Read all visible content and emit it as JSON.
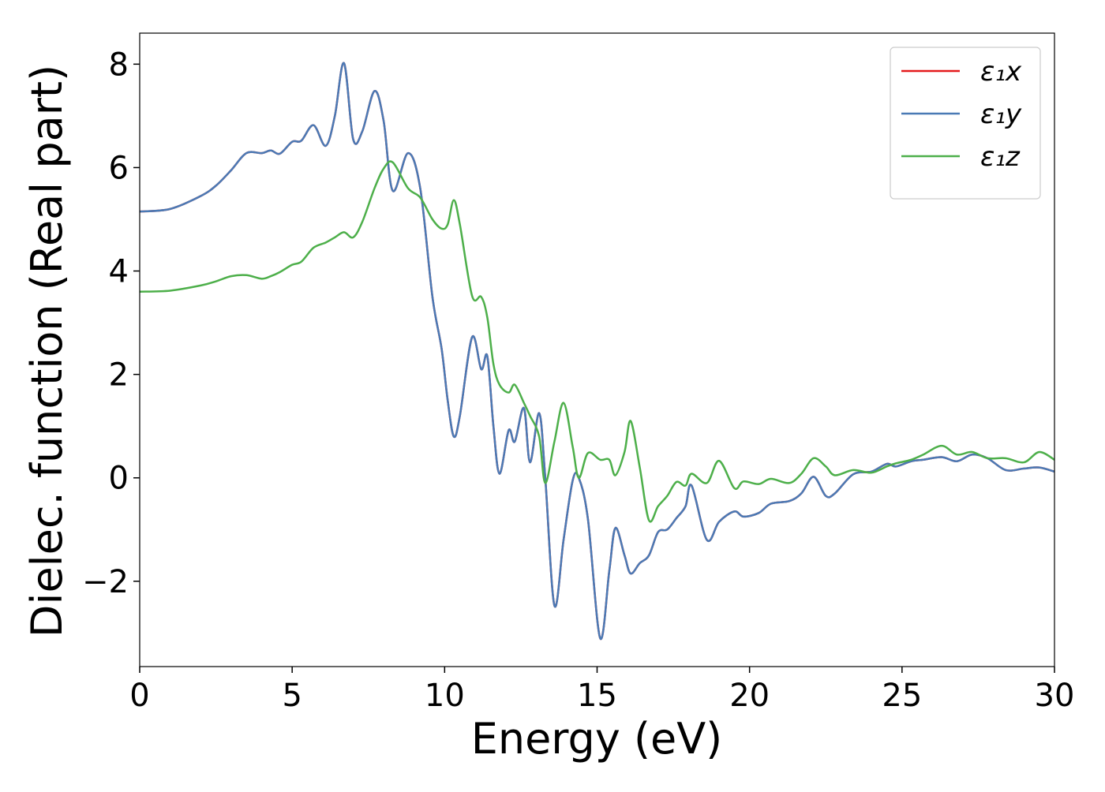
{
  "chart_data": {
    "type": "line",
    "xlabel": "Energy (eV)",
    "ylabel": "Dielec. function (Real part)",
    "x": [
      0,
      1,
      2,
      2.5,
      3,
      3.5,
      4,
      4.3,
      4.6,
      5,
      5.3,
      5.7,
      6.1,
      6.4,
      6.7,
      7.0,
      7.3,
      7.7,
      8.0,
      8.3,
      8.8,
      9.2,
      9.6,
      9.9,
      10.1,
      10.3,
      10.5,
      10.9,
      11.2,
      11.4,
      11.6,
      11.8,
      12.1,
      12.3,
      12.6,
      12.8,
      13.1,
      13.3,
      13.6,
      13.9,
      14.2,
      14.4,
      14.7,
      15.1,
      15.4,
      15.6,
      15.9,
      16.1,
      16.4,
      16.7,
      17.0,
      17.3,
      17.6,
      17.9,
      18.1,
      18.6,
      19.0,
      19.5,
      19.8,
      20.3,
      20.7,
      21.3,
      21.7,
      22.1,
      22.5,
      22.8,
      23.4,
      24,
      24.5,
      24.8,
      25.3,
      25.7,
      26.3,
      26.8,
      27.3,
      27.8,
      28.4,
      29,
      29.5,
      30
    ],
    "series": [
      {
        "name": "ε₁x",
        "color": "#e41a1c",
        "values": [
          5.15,
          5.2,
          5.45,
          5.65,
          5.95,
          6.28,
          6.28,
          6.33,
          6.27,
          6.5,
          6.52,
          6.82,
          6.42,
          7.0,
          8.02,
          6.55,
          6.7,
          7.48,
          6.9,
          5.55,
          6.28,
          5.6,
          3.5,
          2.5,
          1.5,
          0.8,
          1.2,
          2.72,
          2.1,
          2.35,
          1.0,
          0.08,
          0.92,
          0.7,
          1.35,
          0.3,
          1.25,
          0,
          -2.47,
          -1.2,
          -0.05,
          0.0,
          -0.8,
          -3.1,
          -1.8,
          -0.97,
          -1.5,
          -1.85,
          -1.65,
          -1.5,
          -1.05,
          -1.0,
          -0.78,
          -0.55,
          -0.15,
          -1.2,
          -0.85,
          -0.65,
          -0.75,
          -0.68,
          -0.5,
          -0.45,
          -0.3,
          0.02,
          -0.35,
          -0.3,
          0.07,
          0.12,
          0.27,
          0.22,
          0.32,
          0.35,
          0.4,
          0.32,
          0.45,
          0.38,
          0.15,
          0.18,
          0.2,
          0.12
        ]
      },
      {
        "name": "ε₁y",
        "color": "#4a7ab5",
        "values": [
          5.15,
          5.2,
          5.45,
          5.65,
          5.95,
          6.28,
          6.28,
          6.33,
          6.27,
          6.5,
          6.52,
          6.82,
          6.42,
          7.0,
          8.02,
          6.55,
          6.7,
          7.48,
          6.9,
          5.55,
          6.28,
          5.6,
          3.5,
          2.5,
          1.5,
          0.8,
          1.2,
          2.72,
          2.1,
          2.35,
          1.0,
          0.08,
          0.92,
          0.7,
          1.35,
          0.3,
          1.25,
          0,
          -2.47,
          -1.2,
          -0.05,
          0.0,
          -0.8,
          -3.1,
          -1.8,
          -0.97,
          -1.5,
          -1.85,
          -1.65,
          -1.5,
          -1.05,
          -1.0,
          -0.78,
          -0.55,
          -0.15,
          -1.2,
          -0.85,
          -0.65,
          -0.75,
          -0.68,
          -0.5,
          -0.45,
          -0.3,
          0.02,
          -0.35,
          -0.3,
          0.07,
          0.12,
          0.27,
          0.22,
          0.32,
          0.35,
          0.4,
          0.32,
          0.45,
          0.38,
          0.15,
          0.18,
          0.2,
          0.12
        ]
      },
      {
        "name": "ε₁z",
        "color": "#4daf4a",
        "values": [
          3.6,
          3.62,
          3.72,
          3.8,
          3.9,
          3.92,
          3.85,
          3.9,
          3.98,
          4.12,
          4.18,
          4.45,
          4.55,
          4.65,
          4.75,
          4.65,
          4.95,
          5.6,
          5.98,
          6.1,
          5.6,
          5.42,
          5.0,
          4.82,
          4.9,
          5.37,
          4.9,
          3.52,
          3.5,
          3.1,
          2.2,
          1.8,
          1.65,
          1.8,
          1.45,
          1.2,
          0.8,
          -0.1,
          0.7,
          1.45,
          0.6,
          0.0,
          0.48,
          0.35,
          0.35,
          0.05,
          0.5,
          1.1,
          0.2,
          -0.82,
          -0.55,
          -0.35,
          -0.08,
          -0.15,
          0.08,
          -0.1,
          0.33,
          -0.2,
          -0.07,
          -0.12,
          -0.02,
          -0.1,
          0.08,
          0.38,
          0.22,
          0.05,
          0.15,
          0.1,
          0.22,
          0.28,
          0.35,
          0.45,
          0.62,
          0.45,
          0.5,
          0.38,
          0.38,
          0.3,
          0.5,
          0.35
        ]
      }
    ],
    "xlim": [
      0,
      30
    ],
    "xticks": [
      0,
      5,
      10,
      15,
      20,
      25,
      30
    ],
    "ylim": [
      -3.65,
      8.6
    ],
    "yticks": [
      {
        "value": -2,
        "label": "−2"
      },
      0,
      2,
      4,
      6,
      8
    ],
    "legend": "upper right"
  }
}
